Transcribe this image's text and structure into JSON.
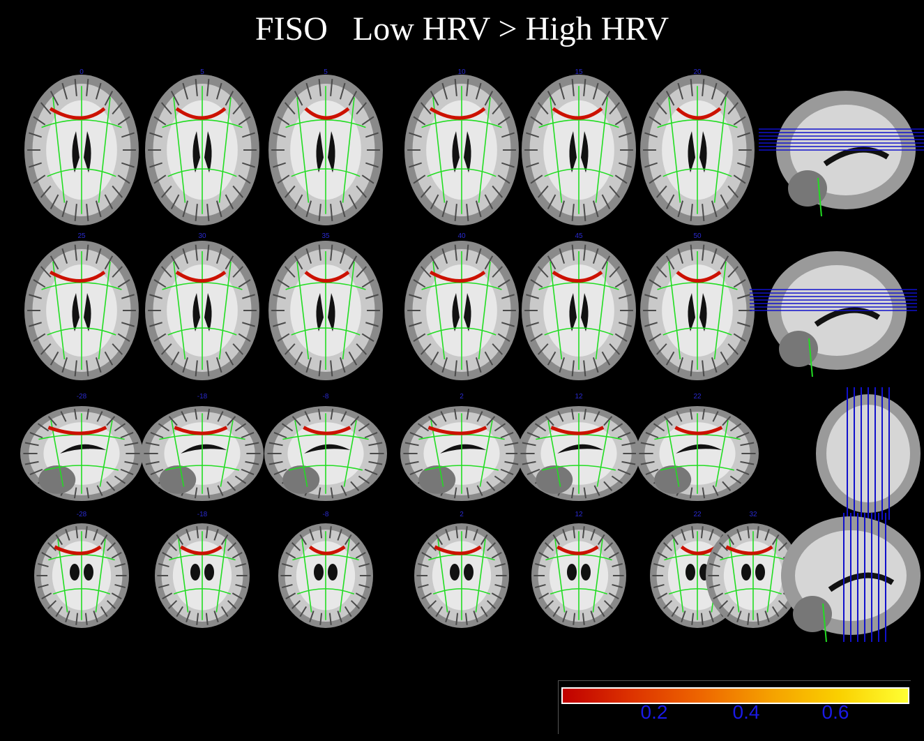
{
  "title": "FISO   Low HRV > High HRV",
  "rows": [
    {
      "view": "axial",
      "labels": [
        "0",
        "5",
        "5",
        "10",
        "15",
        "20"
      ],
      "localizer": "sagittal"
    },
    {
      "view": "axial",
      "labels": [
        "25",
        "30",
        "35",
        "40",
        "45",
        "50"
      ],
      "localizer": "sagittal"
    },
    {
      "view": "sagittal",
      "labels": [
        "-28",
        "-18",
        "-8",
        "2",
        "12",
        "22"
      ],
      "localizer": "coronal"
    },
    {
      "view": "coronal",
      "labels": [
        "-28",
        "-18",
        "-8",
        "2",
        "12",
        "22",
        "32"
      ],
      "localizer": "sagittal"
    }
  ],
  "colors": {
    "background": "#000000",
    "skeleton": "#22dd22",
    "effect": "#cc1100",
    "localizer_lines": "#1111cc"
  },
  "colorbar": {
    "ticks": [
      "0.2",
      "0.4",
      "0.6"
    ],
    "min": 0.1,
    "max": 0.75
  }
}
